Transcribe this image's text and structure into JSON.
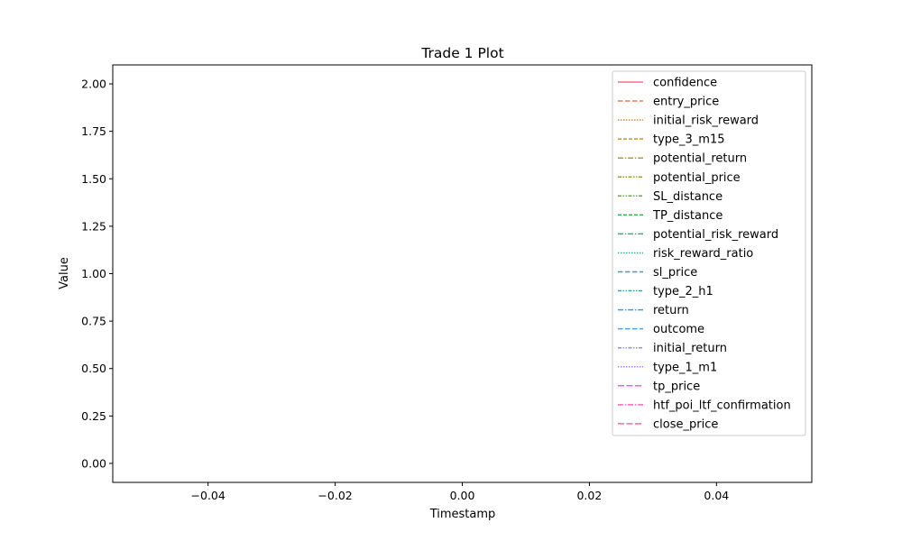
{
  "chart_data": {
    "type": "line",
    "title": "Trade 1 Plot",
    "xlabel": "Timestamp",
    "ylabel": "Value",
    "xlim": [
      -0.055,
      0.055
    ],
    "ylim": [
      -0.1,
      2.1
    ],
    "x_ticks": [
      -0.04,
      -0.02,
      0.0,
      0.02,
      0.04
    ],
    "x_tick_labels": [
      "−0.04",
      "−0.02",
      "0.00",
      "0.02",
      "0.04"
    ],
    "y_ticks": [
      0.0,
      0.25,
      0.5,
      0.75,
      1.0,
      1.25,
      1.5,
      1.75,
      2.0
    ],
    "y_tick_labels": [
      "0.00",
      "0.25",
      "0.50",
      "0.75",
      "1.00",
      "1.25",
      "1.50",
      "1.75",
      "2.00"
    ],
    "grid": false,
    "legend_position": "top-right",
    "series": [
      {
        "name": "confidence",
        "color": "#f77189",
        "dash": "solid",
        "values": []
      },
      {
        "name": "entry_price",
        "color": "#f3794f",
        "dash": "dashed",
        "values": []
      },
      {
        "name": "initial_risk_reward",
        "color": "#d98c32",
        "dash": "dotted",
        "values": []
      },
      {
        "name": "type_3_m15",
        "color": "#c39531",
        "dash": "dashed-short",
        "values": []
      },
      {
        "name": "potential_return",
        "color": "#ae9d31",
        "dash": "dashdot",
        "values": []
      },
      {
        "name": "potential_price",
        "color": "#97a431",
        "dash": "dashdotdot",
        "values": []
      },
      {
        "name": "SL_distance",
        "color": "#72ae31",
        "dash": "dashdotdot",
        "values": []
      },
      {
        "name": "TP_distance",
        "color": "#33b14e",
        "dash": "dashed-short",
        "values": []
      },
      {
        "name": "potential_risk_reward",
        "color": "#35ac87",
        "dash": "dashdot",
        "values": []
      },
      {
        "name": "risk_reward_ratio",
        "color": "#36a99c",
        "dash": "dotted",
        "values": []
      },
      {
        "name": "sl_price",
        "color": "#37a6ab",
        "dash": "dashed",
        "values": []
      },
      {
        "name": "type_2_h1",
        "color": "#39a3bc",
        "dash": "dashdotdot",
        "values": []
      },
      {
        "name": "return",
        "color": "#3ba0d1",
        "dash": "dashdot",
        "values": []
      },
      {
        "name": "outcome",
        "color": "#50a0e6",
        "dash": "dashed",
        "values": []
      },
      {
        "name": "initial_return",
        "color": "#9191f4",
        "dash": "dashdotdot",
        "values": []
      },
      {
        "name": "type_1_m1",
        "color": "#c276f4",
        "dash": "dotted",
        "values": []
      },
      {
        "name": "tp_price",
        "color": "#f061dd",
        "dash": "dashed-long",
        "values": []
      },
      {
        "name": "htf_poi_ltf_confirmation",
        "color": "#f565c0",
        "dash": "dashdot",
        "values": []
      },
      {
        "name": "close_price",
        "color": "#f66ba5",
        "dash": "dashed-long",
        "values": []
      }
    ]
  }
}
